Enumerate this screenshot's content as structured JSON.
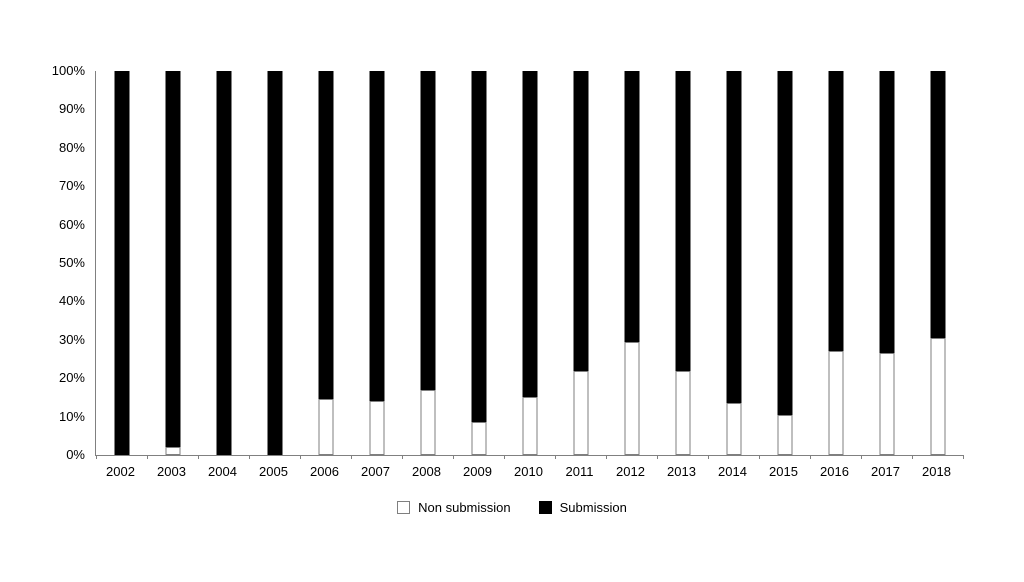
{
  "chart_data": {
    "type": "bar",
    "stacked": true,
    "percent_axis": true,
    "title": "",
    "xlabel": "",
    "ylabel": "",
    "categories": [
      "2002",
      "2003",
      "2004",
      "2005",
      "2006",
      "2007",
      "2008",
      "2009",
      "2010",
      "2011",
      "2012",
      "2013",
      "2014",
      "2015",
      "2016",
      "2017",
      "2018"
    ],
    "series": [
      {
        "name": "Non submission",
        "fill": "#ffffff",
        "stroke": "#7f7f7f",
        "values": [
          0,
          2,
          0,
          0,
          14.5,
          14,
          17,
          8.5,
          15,
          22,
          29.5,
          22,
          13.5,
          10.5,
          27,
          26.5,
          30.5
        ]
      },
      {
        "name": "Submission",
        "fill": "#000000",
        "stroke": "#000000",
        "values": [
          100,
          98,
          100,
          100,
          85.5,
          86,
          83,
          91.5,
          85,
          78,
          70.5,
          78,
          86.5,
          89.5,
          73,
          73.5,
          69.5
        ]
      }
    ],
    "ylim": [
      0,
      100
    ],
    "ytick_labels": [
      "0%",
      "10%",
      "20%",
      "30%",
      "40%",
      "50%",
      "60%",
      "70%",
      "80%",
      "90%",
      "100%"
    ],
    "grid": false,
    "legend_position": "bottom",
    "axis_color": "#808080"
  }
}
